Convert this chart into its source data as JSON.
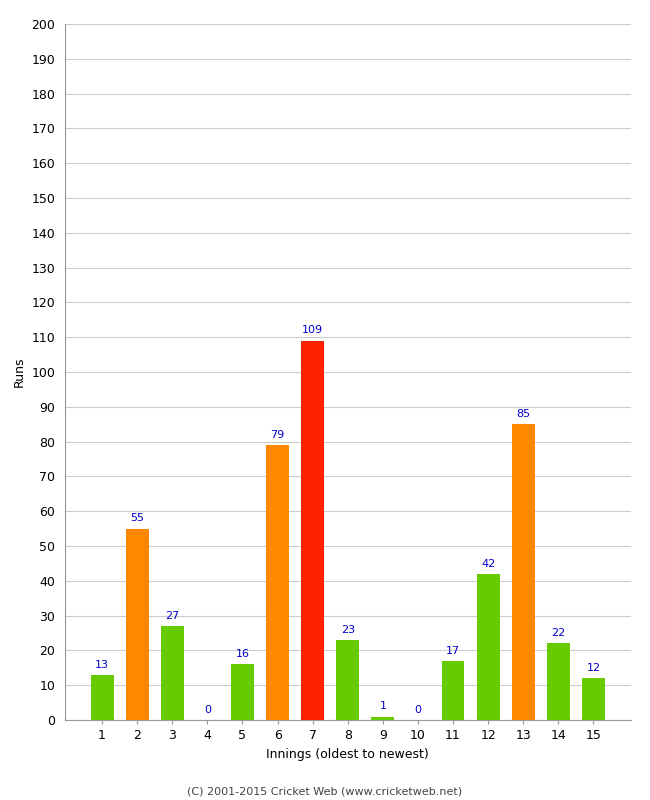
{
  "title": "",
  "xlabel": "Innings (oldest to newest)",
  "ylabel": "Runs",
  "categories": [
    "1",
    "2",
    "3",
    "4",
    "5",
    "6",
    "7",
    "8",
    "9",
    "10",
    "11",
    "12",
    "13",
    "14",
    "15"
  ],
  "values": [
    13,
    55,
    27,
    0,
    16,
    79,
    109,
    23,
    1,
    0,
    17,
    42,
    85,
    22,
    12
  ],
  "bar_colors": [
    "#66cc00",
    "#ff8800",
    "#66cc00",
    "#66cc00",
    "#66cc00",
    "#ff8800",
    "#ff2200",
    "#66cc00",
    "#66cc00",
    "#66cc00",
    "#66cc00",
    "#66cc00",
    "#ff8800",
    "#66cc00",
    "#66cc00"
  ],
  "ylim": [
    0,
    200
  ],
  "ytick_step": 10,
  "label_color": "#0000cc",
  "background_color": "#ffffff",
  "grid_color": "#cccccc",
  "footer": "(C) 2001-2015 Cricket Web (www.cricketweb.net)",
  "bar_width": 0.65
}
